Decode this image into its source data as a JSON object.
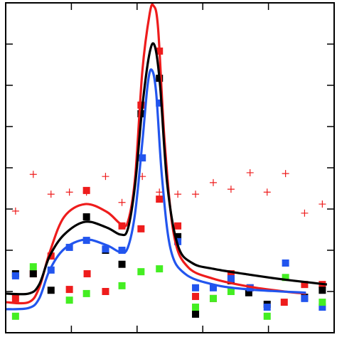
{
  "chart_data": {
    "type": "line",
    "xlim": [
      0,
      5
    ],
    "ylim": [
      0,
      8
    ],
    "xticks": [
      1,
      2,
      3,
      4
    ],
    "yticks": [
      1,
      2,
      3,
      4,
      5,
      6,
      7
    ],
    "series": [
      {
        "mode": "square",
        "color": "#ee1c1c",
        "x": [
          0.15,
          0.42,
          0.69,
          0.97,
          1.23,
          1.24,
          1.52,
          1.77,
          2.06,
          2.06,
          2.34,
          2.34,
          2.62,
          2.89,
          3.16,
          3.43,
          3.72,
          4.24,
          4.55,
          4.82
        ],
        "values": [
          0.83,
          1.43,
          1.86,
          1.05,
          3.45,
          1.43,
          1.0,
          2.59,
          2.52,
          5.52,
          6.83,
          3.24,
          2.59,
          0.88,
          0.83,
          1.43,
          1.09,
          0.74,
          1.17,
          1.17
        ]
      },
      {
        "mode": "square",
        "color": "#000000",
        "x": [
          0.15,
          0.42,
          0.69,
          1.23,
          1.52,
          1.77,
          2.06,
          2.34,
          2.62,
          2.89,
          3.43,
          3.7,
          3.98,
          4.55,
          4.82
        ],
        "values": [
          1.43,
          1.43,
          1.03,
          2.81,
          2.0,
          1.66,
          5.31,
          6.17,
          2.33,
          0.45,
          1.26,
          0.97,
          0.69,
          0.86,
          1.03
        ]
      },
      {
        "mode": "square",
        "color": "#2255ee",
        "x": [
          0.15,
          0.69,
          0.97,
          1.23,
          1.52,
          1.77,
          2.08,
          2.34,
          2.62,
          2.89,
          3.16,
          3.43,
          3.72,
          3.98,
          4.26,
          4.55,
          4.82
        ],
        "values": [
          1.38,
          1.52,
          2.07,
          2.24,
          2.03,
          2.0,
          4.24,
          5.57,
          2.21,
          1.09,
          1.09,
          1.31,
          1.09,
          0.62,
          1.69,
          0.83,
          0.62
        ]
      },
      {
        "mode": "square",
        "color": "#44ee22",
        "x": [
          0.15,
          0.42,
          0.97,
          1.23,
          1.77,
          2.06,
          2.34,
          2.89,
          3.16,
          3.43,
          3.98,
          4.26,
          4.82
        ],
        "values": [
          0.4,
          1.6,
          0.79,
          0.95,
          1.14,
          1.48,
          1.55,
          0.62,
          0.83,
          1.0,
          0.4,
          1.34,
          0.74
        ]
      },
      {
        "mode": "plus",
        "color": "#ee1c1c",
        "x": [
          0.15,
          0.42,
          0.69,
          0.97,
          1.23,
          1.52,
          1.77,
          2.08,
          2.34,
          2.62,
          2.89,
          3.16,
          3.43,
          3.72,
          3.98,
          4.26,
          4.55,
          4.82
        ],
        "values": [
          2.95,
          3.84,
          3.36,
          3.41,
          3.41,
          3.79,
          3.16,
          3.79,
          3.41,
          3.36,
          3.36,
          3.64,
          3.48,
          3.88,
          3.41,
          3.86,
          2.9,
          3.12
        ]
      },
      {
        "mode": "line",
        "color": "#ee1c1c",
        "x": [
          0,
          0.35,
          0.51,
          0.67,
          0.89,
          1.21,
          1.54,
          1.75,
          1.86,
          1.97,
          2.08,
          2.19,
          2.25,
          2.32,
          2.42,
          2.56,
          2.77,
          3.16,
          3.7,
          4.24,
          4.57
        ],
        "values": [
          0.74,
          0.74,
          1.09,
          1.95,
          2.81,
          3.12,
          2.93,
          2.64,
          2.69,
          3.76,
          6.34,
          7.72,
          7.93,
          7.38,
          4.62,
          2.38,
          1.6,
          1.31,
          1.12,
          1.0,
          0.95
        ]
      },
      {
        "mode": "line",
        "color": "#000000",
        "x": [
          0,
          0.35,
          0.51,
          0.67,
          0.89,
          1.21,
          1.54,
          1.75,
          1.86,
          1.97,
          2.08,
          2.19,
          2.27,
          2.35,
          2.46,
          2.62,
          2.84,
          3.16,
          3.7,
          4.24,
          4.89
        ],
        "values": [
          0.95,
          0.95,
          1.17,
          1.86,
          2.38,
          2.69,
          2.55,
          2.38,
          2.52,
          3.59,
          5.48,
          6.78,
          6.95,
          6.0,
          3.59,
          2.12,
          1.69,
          1.55,
          1.41,
          1.29,
          1.17
        ]
      },
      {
        "mode": "line",
        "color": "#2255ee",
        "x": [
          0,
          0.35,
          0.51,
          0.67,
          0.89,
          1.21,
          1.54,
          1.75,
          1.86,
          1.97,
          2.08,
          2.16,
          2.22,
          2.29,
          2.38,
          2.51,
          2.73,
          3.16,
          3.7,
          4.57
        ],
        "values": [
          0.57,
          0.6,
          0.83,
          1.52,
          2.03,
          2.26,
          2.12,
          1.95,
          2.07,
          2.9,
          4.62,
          6.0,
          6.38,
          5.83,
          3.76,
          2.03,
          1.43,
          1.17,
          1.05,
          0.97
        ]
      }
    ]
  }
}
